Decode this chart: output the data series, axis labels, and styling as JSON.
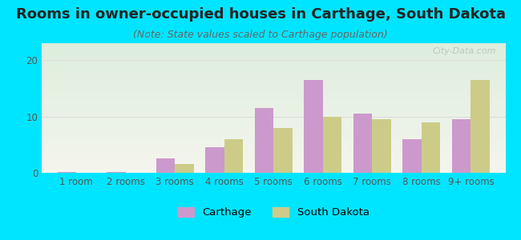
{
  "title": "Rooms in owner-occupied houses in Carthage, South Dakota",
  "subtitle": "(Note: State values scaled to Carthage population)",
  "categories": [
    "1 room",
    "2 rooms",
    "3 rooms",
    "4 rooms",
    "5 rooms",
    "6 rooms",
    "7 rooms",
    "8 rooms",
    "9+ rooms"
  ],
  "carthage_values": [
    0.2,
    0.2,
    2.5,
    4.5,
    11.5,
    16.5,
    10.5,
    6.0,
    9.5
  ],
  "south_dakota_values": [
    0.0,
    0.0,
    1.5,
    6.0,
    8.0,
    10.0,
    9.5,
    9.0,
    16.5
  ],
  "carthage_color": "#cc99cc",
  "south_dakota_color": "#cccc88",
  "background_outer": "#00e5ff",
  "grid_color": "#dddddd",
  "ylim": [
    0,
    23
  ],
  "yticks": [
    0,
    10,
    20
  ],
  "bar_width": 0.38,
  "title_fontsize": 13,
  "subtitle_fontsize": 9,
  "tick_fontsize": 8.5,
  "legend_fontsize": 9.5,
  "watermark_text": "City-Data.com"
}
